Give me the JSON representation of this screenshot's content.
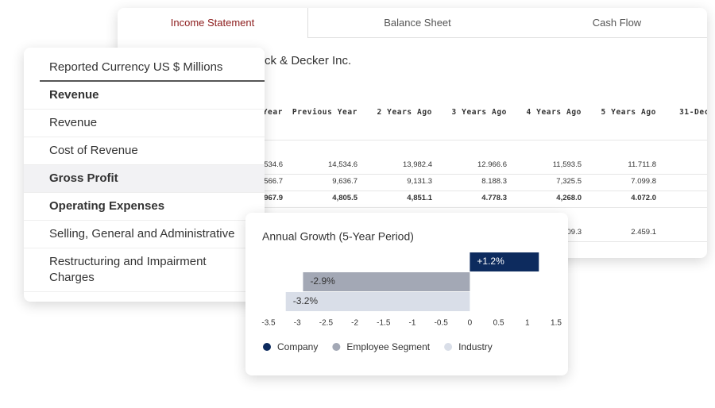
{
  "tabs": [
    "Income Statement",
    "Balance Sheet",
    "Cash Flow"
  ],
  "active_tab": 0,
  "statement": {
    "company": "ck & Decker Inc.",
    "columns": [
      "Year",
      "Previous Year",
      "2 Years Ago",
      "3 Years Ago",
      "4 Years Ago",
      "5 Years Ago",
      "31-Dec"
    ],
    "rows": [
      {
        "bold": false,
        "cells": [
          "534.6",
          "14,534.6",
          "13,982.4",
          "12.966.6",
          "11,593.5",
          "11.711.8"
        ]
      },
      {
        "bold": false,
        "cells": [
          "566.7",
          "9,636.7",
          "9,131.3",
          "8.188.3",
          "7,325.5",
          "7.099.8"
        ]
      },
      {
        "bold": true,
        "cells": [
          "967.9",
          "4,805.5",
          "4,851.1",
          "4.778.3",
          "4,268.0",
          "4.072.0"
        ]
      },
      {
        "bold": false,
        "cells": [
          null,
          null,
          null,
          null,
          "09.3",
          "2.459.1"
        ]
      }
    ]
  },
  "reported_currency": "Reported Currency US $ Millions",
  "line_items": [
    {
      "label": "Revenue",
      "bold": true
    },
    {
      "label": "Revenue",
      "bold": false
    },
    {
      "label": "Cost of Revenue",
      "bold": false
    },
    {
      "label": "Gross Profit",
      "bold": true,
      "highlight": true
    },
    {
      "label": "Operating Expenses",
      "bold": true
    },
    {
      "label": "Selling, General and Administrative",
      "bold": false
    },
    {
      "label": "Restructuring and Impairment Charges",
      "bold": false
    }
  ],
  "chart_data": {
    "type": "bar",
    "orientation": "horizontal",
    "title": "Annual Growth (5-Year Period)",
    "series": [
      {
        "name": "Company",
        "color": "#0d2b5e",
        "label_color": "#ffffff",
        "values": [
          1.2
        ],
        "value_labels": [
          "+1.2%"
        ]
      },
      {
        "name": "Employee Segment",
        "color": "#a3a8b5",
        "label_color": "#333333",
        "values": [
          -2.9
        ],
        "value_labels": [
          "-2.9%"
        ]
      },
      {
        "name": "Industry",
        "color": "#d9dee8",
        "label_color": "#333333",
        "values": [
          -3.2
        ],
        "value_labels": [
          "-3.2%"
        ]
      }
    ],
    "xlim": [
      -3.5,
      1.5
    ],
    "xticks": [
      -3.5,
      -3,
      -2.5,
      -2,
      -1.5,
      -1,
      -0.5,
      0,
      0.5,
      1,
      1.5
    ],
    "legend": "bottom"
  }
}
